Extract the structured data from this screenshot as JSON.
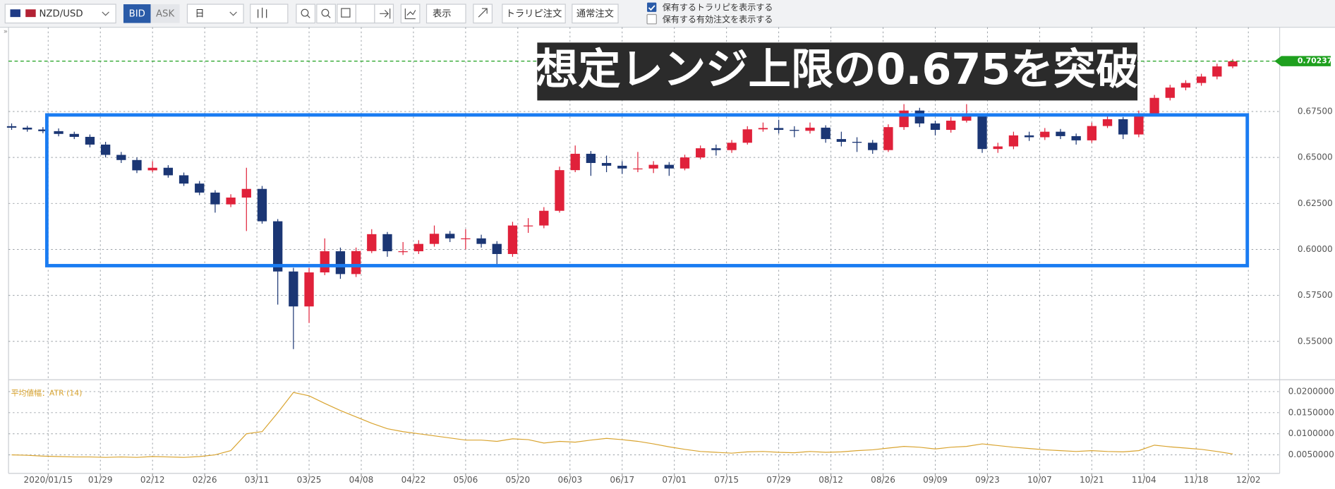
{
  "toolbar": {
    "pair": "NZD/USD",
    "bid": "BID",
    "ask": "ASK",
    "period": "日",
    "view": "表示",
    "trarepe": "トラリピ注文",
    "normal": "通常注文",
    "check1": "保有するトラリピを表示する",
    "check2": "保有する有効注文を表示する"
  },
  "chart_data": [
    {
      "type": "candlestick",
      "annotation": "想定レンジ上限の0.675を突破",
      "up_color": "#e0213a",
      "down_color": "#1b3674",
      "grid": true,
      "last_price": {
        "value": 0.70237,
        "label": "0.70237"
      },
      "last_price_color": "#1ea01e",
      "xlim": [
        -0.6,
        243
      ],
      "ylim": [
        0.5296,
        0.7208
      ],
      "xticks": [
        {
          "value": 7,
          "label": "2020/01/15"
        },
        {
          "value": 17,
          "label": "01/29"
        },
        {
          "value": 27,
          "label": "02/12"
        },
        {
          "value": 37,
          "label": "02/26"
        },
        {
          "value": 47,
          "label": "03/11"
        },
        {
          "value": 57,
          "label": "03/25"
        },
        {
          "value": 67,
          "label": "04/08"
        },
        {
          "value": 77,
          "label": "04/22"
        },
        {
          "value": 87,
          "label": "05/06"
        },
        {
          "value": 97,
          "label": "05/20"
        },
        {
          "value": 107,
          "label": "06/03"
        },
        {
          "value": 117,
          "label": "06/17"
        },
        {
          "value": 127,
          "label": "07/01"
        },
        {
          "value": 137,
          "label": "07/15"
        },
        {
          "value": 147,
          "label": "07/29"
        },
        {
          "value": 157,
          "label": "08/12"
        },
        {
          "value": 167,
          "label": "08/26"
        },
        {
          "value": 177,
          "label": "09/09"
        },
        {
          "value": 187,
          "label": "09/23"
        },
        {
          "value": 197,
          "label": "10/07"
        },
        {
          "value": 207,
          "label": "10/21"
        },
        {
          "value": 217,
          "label": "11/04"
        },
        {
          "value": 227,
          "label": "11/18"
        },
        {
          "value": 237,
          "label": "12/02"
        }
      ],
      "yticks": [
        {
          "value": 0.55,
          "label": "0.55000"
        },
        {
          "value": 0.575,
          "label": "0.57500"
        },
        {
          "value": 0.6,
          "label": "0.60000"
        },
        {
          "value": 0.625,
          "label": "0.62500"
        },
        {
          "value": 0.65,
          "label": "0.65000"
        },
        {
          "value": 0.675,
          "label": "0.67500"
        }
      ],
      "x": [
        0,
        3,
        6,
        9,
        12,
        15,
        18,
        21,
        24,
        27,
        30,
        33,
        36,
        39,
        42,
        45,
        48,
        51,
        54,
        57,
        60,
        63,
        66,
        69,
        72,
        75,
        78,
        81,
        84,
        87,
        90,
        93,
        96,
        99,
        102,
        105,
        108,
        111,
        114,
        117,
        120,
        123,
        126,
        129,
        132,
        135,
        138,
        141,
        144,
        147,
        150,
        153,
        156,
        159,
        162,
        165,
        168,
        171,
        174,
        177,
        180,
        183,
        186,
        189,
        192,
        195,
        198,
        201,
        204,
        207,
        210,
        213,
        216,
        219,
        222,
        225,
        228,
        231,
        234
      ],
      "ohlc": [
        [
          0.667,
          0.6685,
          0.665,
          0.6662
        ],
        [
          0.6662,
          0.6672,
          0.664,
          0.6652
        ],
        [
          0.6652,
          0.6665,
          0.6632,
          0.6643
        ],
        [
          0.6643,
          0.6658,
          0.6615,
          0.6628
        ],
        [
          0.6628,
          0.664,
          0.66,
          0.6612
        ],
        [
          0.6612,
          0.6625,
          0.6555,
          0.657
        ],
        [
          0.657,
          0.6585,
          0.65,
          0.6514
        ],
        [
          0.6514,
          0.653,
          0.647,
          0.6486
        ],
        [
          0.6486,
          0.65,
          0.6415,
          0.643
        ],
        [
          0.643,
          0.648,
          0.642,
          0.6444
        ],
        [
          0.6444,
          0.6458,
          0.639,
          0.6403
        ],
        [
          0.6403,
          0.6418,
          0.6345,
          0.6358
        ],
        [
          0.6358,
          0.6372,
          0.6295,
          0.6309
        ],
        [
          0.6309,
          0.6322,
          0.62,
          0.6245
        ],
        [
          0.6245,
          0.63,
          0.623,
          0.6282
        ],
        [
          0.6282,
          0.6444,
          0.61,
          0.6329
        ],
        [
          0.6329,
          0.6345,
          0.614,
          0.6153
        ],
        [
          0.6153,
          0.6165,
          0.57,
          0.588
        ],
        [
          0.588,
          0.59,
          0.5458,
          0.569
        ],
        [
          0.569,
          0.59,
          0.56,
          0.5875
        ],
        [
          0.5875,
          0.606,
          0.586,
          0.599
        ],
        [
          0.599,
          0.601,
          0.584,
          0.5866
        ],
        [
          0.5866,
          0.601,
          0.585,
          0.5991
        ],
        [
          0.5991,
          0.611,
          0.598,
          0.6083
        ],
        [
          0.6083,
          0.6095,
          0.596,
          0.599
        ],
        [
          0.599,
          0.604,
          0.597,
          0.599
        ],
        [
          0.599,
          0.605,
          0.5975,
          0.603
        ],
        [
          0.603,
          0.613,
          0.6015,
          0.6085
        ],
        [
          0.6085,
          0.61,
          0.604,
          0.606
        ],
        [
          0.606,
          0.611,
          0.6,
          0.606
        ],
        [
          0.606,
          0.608,
          0.601,
          0.603
        ],
        [
          0.603,
          0.6045,
          0.592,
          0.5975
        ],
        [
          0.5975,
          0.615,
          0.596,
          0.613
        ],
        [
          0.613,
          0.617,
          0.609,
          0.613
        ],
        [
          0.613,
          0.623,
          0.6115,
          0.621
        ],
        [
          0.621,
          0.645,
          0.62,
          0.6431
        ],
        [
          0.6431,
          0.6565,
          0.642,
          0.652
        ],
        [
          0.652,
          0.6535,
          0.64,
          0.647
        ],
        [
          0.647,
          0.651,
          0.642,
          0.6455
        ],
        [
          0.6455,
          0.648,
          0.641,
          0.644
        ],
        [
          0.644,
          0.653,
          0.642,
          0.644
        ],
        [
          0.644,
          0.648,
          0.6415,
          0.646
        ],
        [
          0.646,
          0.6475,
          0.64,
          0.644
        ],
        [
          0.644,
          0.6515,
          0.643,
          0.65
        ],
        [
          0.65,
          0.6565,
          0.649,
          0.655
        ],
        [
          0.655,
          0.657,
          0.651,
          0.654
        ],
        [
          0.654,
          0.6595,
          0.6525,
          0.658
        ],
        [
          0.658,
          0.667,
          0.657,
          0.6653
        ],
        [
          0.6653,
          0.669,
          0.664,
          0.666
        ],
        [
          0.666,
          0.6705,
          0.663,
          0.665
        ],
        [
          0.665,
          0.667,
          0.661,
          0.6645
        ],
        [
          0.6645,
          0.669,
          0.663,
          0.6662
        ],
        [
          0.6662,
          0.6675,
          0.658,
          0.66
        ],
        [
          0.66,
          0.664,
          0.656,
          0.6585
        ],
        [
          0.6585,
          0.661,
          0.653,
          0.658
        ],
        [
          0.658,
          0.6595,
          0.652,
          0.654
        ],
        [
          0.654,
          0.668,
          0.653,
          0.6665
        ],
        [
          0.6665,
          0.679,
          0.665,
          0.6755
        ],
        [
          0.6755,
          0.677,
          0.6665,
          0.6685
        ],
        [
          0.6685,
          0.67,
          0.662,
          0.665
        ],
        [
          0.665,
          0.672,
          0.6635,
          0.67
        ],
        [
          0.67,
          0.679,
          0.669,
          0.6727
        ],
        [
          0.6727,
          0.674,
          0.6525,
          0.6546
        ],
        [
          0.6546,
          0.658,
          0.6525,
          0.656
        ],
        [
          0.656,
          0.664,
          0.6545,
          0.662
        ],
        [
          0.662,
          0.664,
          0.659,
          0.661
        ],
        [
          0.661,
          0.666,
          0.6595,
          0.664
        ],
        [
          0.664,
          0.6655,
          0.66,
          0.6616
        ],
        [
          0.6616,
          0.663,
          0.657,
          0.6593
        ],
        [
          0.6593,
          0.669,
          0.658,
          0.6671
        ],
        [
          0.6671,
          0.6725,
          0.666,
          0.6708
        ],
        [
          0.6708,
          0.672,
          0.66,
          0.6625
        ],
        [
          0.6625,
          0.6755,
          0.661,
          0.674
        ],
        [
          0.674,
          0.684,
          0.673,
          0.6824
        ],
        [
          0.6824,
          0.6895,
          0.681,
          0.688
        ],
        [
          0.688,
          0.692,
          0.6865,
          0.6905
        ],
        [
          0.6905,
          0.6955,
          0.689,
          0.694
        ],
        [
          0.694,
          0.701,
          0.6925,
          0.6995
        ],
        [
          0.6995,
          0.7035,
          0.6985,
          0.7023
        ]
      ]
    },
    {
      "type": "line",
      "grid": true,
      "ylim": [
        0.0008,
        0.022
      ],
      "yticks": [
        {
          "value": 0.005,
          "label": "0.0050000"
        },
        {
          "value": 0.01,
          "label": "0.0100000"
        },
        {
          "value": 0.015,
          "label": "0.0150000"
        },
        {
          "value": 0.02,
          "label": "0.0200000"
        }
      ],
      "series": [
        {
          "name": "平均値幅：ATR (14)",
          "color": "#d9a430",
          "values": [
            0.005,
            0.0049,
            0.0047,
            0.0046,
            0.0045,
            0.0045,
            0.0044,
            0.0045,
            0.0044,
            0.0046,
            0.0045,
            0.0044,
            0.0046,
            0.005,
            0.006,
            0.01,
            0.0105,
            0.015,
            0.0198,
            0.019,
            0.0172,
            0.0155,
            0.014,
            0.0125,
            0.0112,
            0.0105,
            0.01,
            0.0095,
            0.009,
            0.0085,
            0.0085,
            0.0082,
            0.0088,
            0.0086,
            0.0078,
            0.0082,
            0.008,
            0.0085,
            0.0089,
            0.0086,
            0.0082,
            0.0076,
            0.0069,
            0.0063,
            0.0058,
            0.0056,
            0.0054,
            0.0057,
            0.0058,
            0.0056,
            0.0055,
            0.0058,
            0.0056,
            0.0057,
            0.006,
            0.0062,
            0.0066,
            0.007,
            0.0068,
            0.0064,
            0.0068,
            0.007,
            0.0076,
            0.0072,
            0.0068,
            0.0065,
            0.0062,
            0.006,
            0.0058,
            0.006,
            0.0058,
            0.0057,
            0.006,
            0.0073,
            0.0069,
            0.0066,
            0.0063,
            0.0058,
            0.0052
          ]
        }
      ]
    }
  ]
}
